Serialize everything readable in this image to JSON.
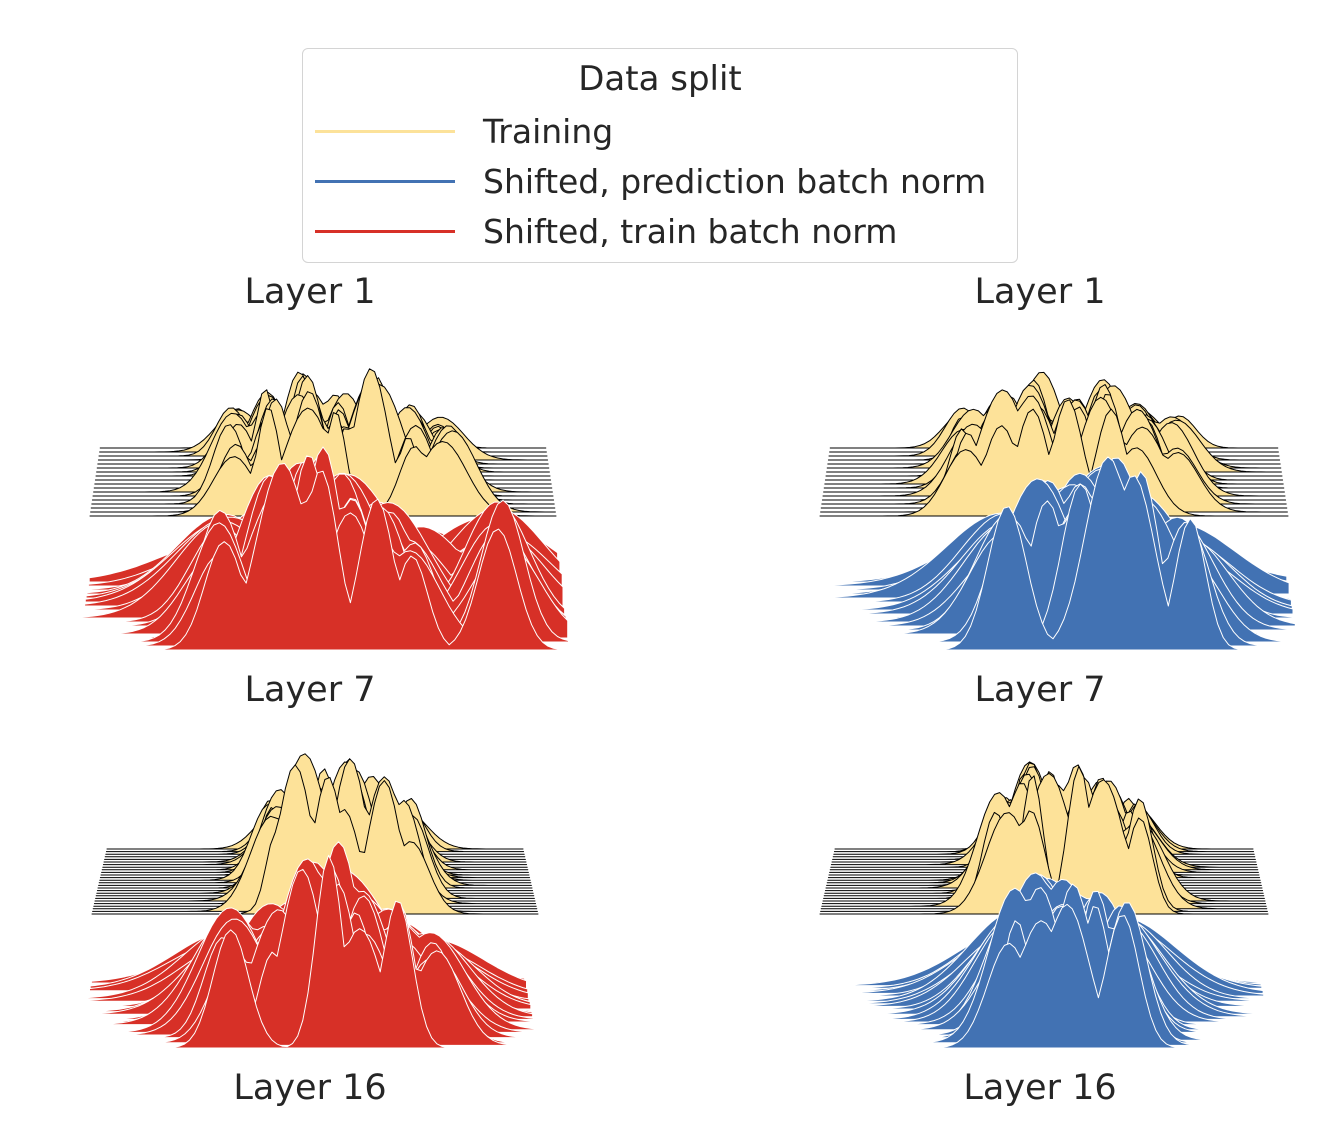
{
  "legend": {
    "title": "Data split",
    "entries": [
      {
        "label": "Training",
        "color": "#fce29a"
      },
      {
        "label": "Shifted, prediction batch norm",
        "color": "#4272b3"
      },
      {
        "label": "Shifted, train batch norm",
        "color": "#d73027"
      }
    ]
  },
  "colors": {
    "training_fill": "#fde299",
    "training_edge": "#000000",
    "shifted_edge": "#ffffff"
  },
  "chart_data": [
    {
      "type": "area",
      "title": "Layer 1",
      "subtitle": "Layer 7",
      "column": "left",
      "series": [
        {
          "name": "Training",
          "peak_centers": [
            0.2,
            0.28,
            0.36,
            0.44,
            0.52,
            0.6,
            0.68
          ],
          "peak_heights": [
            0.55,
            0.75,
            0.9,
            0.7,
            0.85,
            0.6,
            0.5
          ],
          "ridges": 18
        },
        {
          "name": "Shifted, train batch norm",
          "peak_centers": [
            0.18,
            0.3,
            0.36,
            0.4,
            0.45,
            0.53,
            0.6,
            0.78
          ],
          "peak_heights": [
            0.65,
            0.85,
            0.95,
            1.0,
            0.9,
            0.7,
            0.6,
            0.7
          ],
          "ridges": 18
        }
      ]
    },
    {
      "type": "area",
      "title": "Layer 1",
      "subtitle": "Layer 7",
      "column": "right",
      "series": [
        {
          "name": "Training",
          "peak_centers": [
            0.2,
            0.28,
            0.36,
            0.44,
            0.52,
            0.6,
            0.68
          ],
          "peak_heights": [
            0.55,
            0.75,
            0.9,
            0.7,
            0.85,
            0.6,
            0.5
          ],
          "ridges": 18
        },
        {
          "name": "Shifted, prediction batch norm",
          "peak_centers": [
            0.3,
            0.38,
            0.45,
            0.52,
            0.58,
            0.68
          ],
          "peak_heights": [
            0.6,
            0.75,
            0.85,
            0.9,
            0.75,
            0.55
          ],
          "ridges": 18
        }
      ]
    },
    {
      "type": "area",
      "title": "Layer 16",
      "column": "left",
      "series": [
        {
          "name": "Training",
          "peak_centers": [
            0.3,
            0.36,
            0.42,
            0.48,
            0.55,
            0.62
          ],
          "peak_heights": [
            0.7,
            0.95,
            0.85,
            0.9,
            0.8,
            0.65
          ],
          "ridges": 26
        },
        {
          "name": "Shifted, train batch norm",
          "peak_centers": [
            0.22,
            0.32,
            0.4,
            0.46,
            0.52,
            0.6,
            0.68
          ],
          "peak_heights": [
            0.65,
            0.7,
            0.9,
            1.0,
            0.75,
            0.7,
            0.55
          ],
          "ridges": 26
        }
      ]
    },
    {
      "type": "area",
      "title": "Layer 16",
      "column": "right",
      "series": [
        {
          "name": "Training",
          "peak_centers": [
            0.3,
            0.36,
            0.42,
            0.48,
            0.55,
            0.62
          ],
          "peak_heights": [
            0.7,
            0.95,
            0.85,
            0.9,
            0.8,
            0.65
          ],
          "ridges": 26
        },
        {
          "name": "Shifted, prediction batch norm",
          "peak_centers": [
            0.34,
            0.4,
            0.46,
            0.52,
            0.58
          ],
          "peak_heights": [
            0.75,
            0.9,
            0.85,
            0.8,
            0.7
          ],
          "ridges": 26
        }
      ]
    }
  ]
}
